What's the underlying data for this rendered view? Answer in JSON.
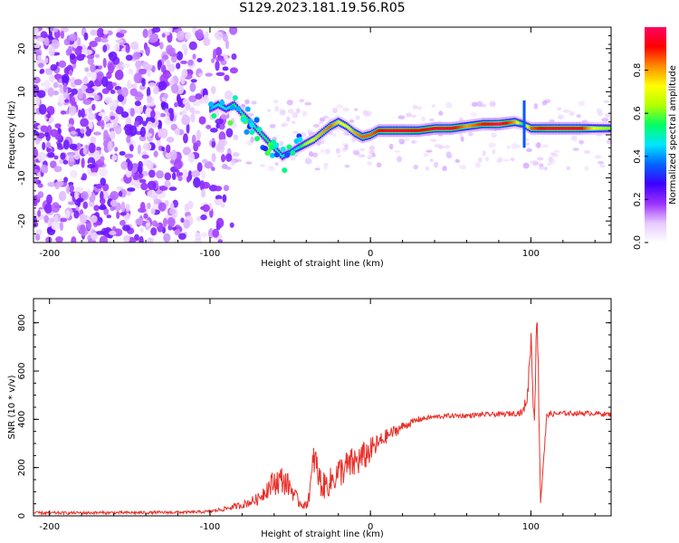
{
  "title": "S129.2023.181.19.56.R05",
  "chart_data": [
    {
      "type": "heatmap",
      "xlabel": "Height of straight line (km)",
      "ylabel": "Frequency (Hz)",
      "xlim": [
        -210,
        150
      ],
      "ylim": [
        -25,
        25
      ],
      "x_ticks": [
        -200,
        -100,
        0,
        100
      ],
      "y_ticks": [
        -20,
        -10,
        0,
        10,
        20
      ],
      "colorbar": {
        "label": "Normalized spectral amplitude",
        "range": [
          0,
          1
        ],
        "ticks": [
          0.0,
          0.2,
          0.4,
          0.6,
          0.8
        ],
        "colormap": [
          "#ffffff",
          "#e6c8ff",
          "#9b30ff",
          "#3c00ff",
          "#0064ff",
          "#00e6ff",
          "#00ff64",
          "#b4ff00",
          "#ffff00",
          "#ff8c00",
          "#ff0000",
          "#ff0064"
        ]
      },
      "ridge": {
        "x": [
          -100,
          -95,
          -90,
          -85,
          -80,
          -75,
          -70,
          -65,
          -60,
          -55,
          -50,
          -45,
          -40,
          -35,
          -30,
          -25,
          -20,
          -15,
          -10,
          -5,
          0,
          5,
          10,
          20,
          30,
          40,
          50,
          60,
          70,
          80,
          90,
          95,
          100,
          110,
          120,
          130,
          140,
          150
        ],
        "y": [
          6,
          7,
          6,
          7,
          5,
          3,
          1,
          -1,
          -3,
          -5,
          -4,
          -3,
          -2,
          -1,
          0.5,
          2,
          3,
          2,
          0.5,
          -0.5,
          0,
          1,
          1,
          1,
          1,
          1.5,
          1.5,
          2,
          2.5,
          2.5,
          3,
          2.5,
          1.5,
          1.5,
          1.5,
          1.5,
          1.5,
          1.5
        ],
        "amplitude": [
          0.4,
          0.5,
          0.45,
          0.55,
          0.5,
          0.55,
          0.5,
          0.55,
          0.5,
          0.5,
          0.35,
          0.5,
          0.65,
          0.75,
          0.8,
          0.85,
          0.75,
          0.7,
          0.8,
          0.85,
          0.85,
          0.9,
          0.95,
          0.95,
          0.9,
          0.95,
          0.95,
          0.8,
          0.9,
          1.0,
          0.8,
          0.5,
          0.85,
          0.95,
          0.95,
          0.95,
          0.7,
          0.6
        ]
      },
      "noise_region_x": [
        -210,
        -85
      ]
    },
    {
      "type": "line",
      "xlabel": "Height of straight line (km)",
      "ylabel": "SNR (10 * v/v)",
      "xlim": [
        -210,
        150
      ],
      "ylim": [
        0,
        900
      ],
      "x_ticks": [
        -200,
        -100,
        0,
        100
      ],
      "y_ticks": [
        0,
        200,
        400,
        600,
        800
      ],
      "series": [
        {
          "color": "#e8302a",
          "x": [
            -210,
            -190,
            -170,
            -150,
            -130,
            -110,
            -100,
            -90,
            -80,
            -70,
            -65,
            -60,
            -55,
            -50,
            -45,
            -40,
            -37,
            -35,
            -33,
            -30,
            -25,
            -20,
            -15,
            -10,
            -5,
            0,
            5,
            10,
            15,
            20,
            25,
            30,
            40,
            50,
            60,
            70,
            80,
            90,
            95,
            98,
            100,
            102,
            104,
            106,
            110,
            120,
            130,
            140,
            150
          ],
          "y": [
            12,
            12,
            13,
            13,
            14,
            15,
            18,
            30,
            45,
            70,
            110,
            140,
            150,
            120,
            60,
            40,
            130,
            250,
            180,
            120,
            140,
            180,
            200,
            220,
            240,
            270,
            300,
            330,
            350,
            370,
            385,
            400,
            410,
            415,
            415,
            420,
            420,
            425,
            430,
            500,
            750,
            400,
            850,
            60,
            420,
            425,
            425,
            425,
            420
          ],
          "noise_amplitude": [
            6,
            6,
            6,
            6,
            6,
            6,
            6,
            10,
            15,
            25,
            40,
            55,
            60,
            45,
            25,
            15,
            60,
            90,
            70,
            55,
            60,
            65,
            70,
            70,
            65,
            55,
            40,
            30,
            25,
            20,
            15,
            12,
            10,
            10,
            10,
            10,
            10,
            12,
            14,
            40,
            60,
            60,
            60,
            40,
            12,
            10,
            10,
            10,
            10
          ]
        }
      ]
    }
  ]
}
